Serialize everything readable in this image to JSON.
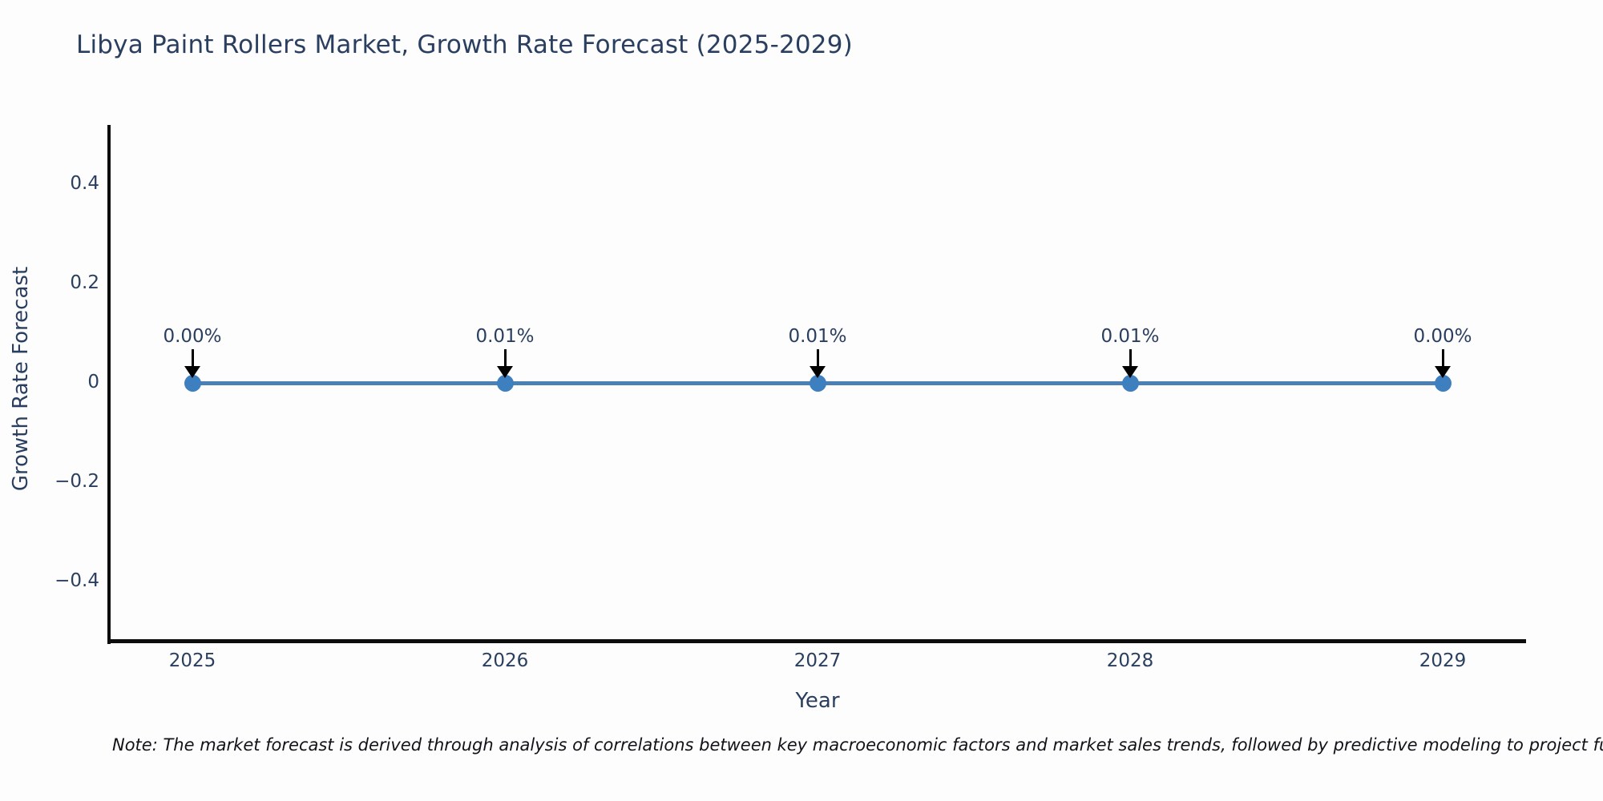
{
  "title": "Libya Paint Rollers Market, Growth Rate Forecast (2025-2029)",
  "y_axis": {
    "title": "Growth Rate Forecast",
    "tick_labels": [
      "0.4",
      "0.2",
      "0",
      "−0.2",
      "−0.4"
    ]
  },
  "x_axis": {
    "title": "Year",
    "tick_labels": [
      "2025",
      "2026",
      "2027",
      "2028",
      "2029"
    ]
  },
  "note": "Note: The market forecast is derived through analysis of correlations between key macroeconomic factors and market sales trends, followed by predictive modeling to project future sa",
  "colors": {
    "title_text": "#2a3f5f",
    "axis_line": "#0d0d0d",
    "series_line": "#4a80b5",
    "marker_fill": "#3d7fbf",
    "annotation_arrow": "#000000"
  },
  "chart_data": {
    "type": "line",
    "title": "Libya Paint Rollers Market, Growth Rate Forecast (2025-2029)",
    "xlabel": "Year",
    "ylabel": "Growth Rate Forecast",
    "x": [
      2025,
      2026,
      2027,
      2028,
      2029
    ],
    "y": [
      0.0,
      0.0001,
      0.0001,
      0.0001,
      0.0
    ],
    "point_labels": [
      "0.00%",
      "0.01%",
      "0.01%",
      "0.01%",
      "0.00%"
    ],
    "ytick_values": [
      0.4,
      0.2,
      0,
      -0.2,
      -0.4
    ],
    "ylim": [
      -0.52,
      0.52
    ],
    "grid": false,
    "legend": false,
    "annotations_style": "value label with downward arrow onto each point"
  }
}
